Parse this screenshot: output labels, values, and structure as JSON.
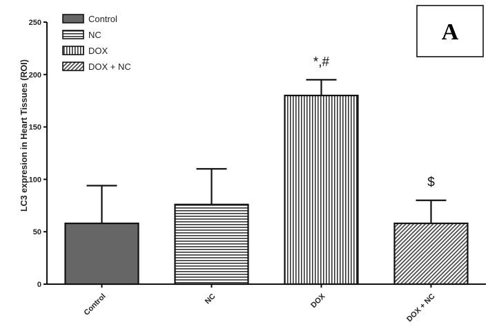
{
  "chart_data": {
    "type": "bar",
    "panel_label": "A",
    "ylabel": "LC3 expresion in Heart Tissues (ROI)",
    "xlabel": "",
    "ylim": [
      0,
      250
    ],
    "yticks": [
      "0",
      "50",
      "100",
      "150",
      "200",
      "250"
    ],
    "categories": [
      "Control",
      "NC",
      "DOX",
      "DOX + NC"
    ],
    "values": [
      58,
      76,
      180,
      58
    ],
    "error_upper": [
      94,
      110,
      195,
      80
    ],
    "annotations": [
      "",
      "",
      "*,#",
      "$"
    ],
    "legend": {
      "position": "top-left",
      "entries": [
        "Control",
        "NC",
        "DOX",
        "DOX + NC"
      ]
    },
    "grid": false,
    "colors": {
      "Control": "#666666",
      "NC": "#ffffff",
      "DOX": "#ffffff",
      "DOX + NC": "#ffffff",
      "stroke": "#111111"
    }
  }
}
